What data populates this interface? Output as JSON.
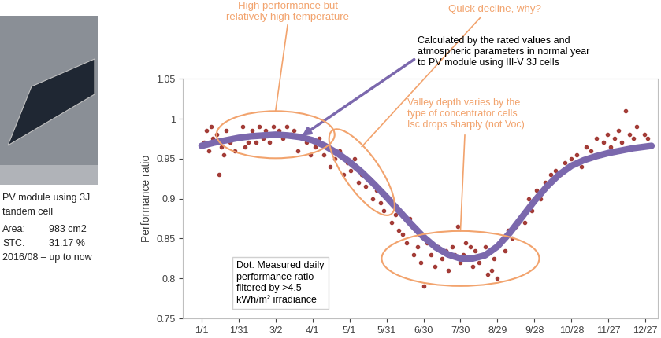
{
  "chart_data": {
    "type": "scatter",
    "y_label": "Performance ratio",
    "xlim": [
      -15,
      370
    ],
    "xticks": [
      {
        "value": 0,
        "label": "1/1"
      },
      {
        "value": 30,
        "label": "1/31"
      },
      {
        "value": 60,
        "label": "3/2"
      },
      {
        "value": 90,
        "label": "4/1"
      },
      {
        "value": 120,
        "label": "5/1"
      },
      {
        "value": 150,
        "label": "5/31"
      },
      {
        "value": 180,
        "label": "6/30"
      },
      {
        "value": 210,
        "label": "7/30"
      },
      {
        "value": 240,
        "label": "8/29"
      },
      {
        "value": 270,
        "label": "9/28"
      },
      {
        "value": 300,
        "label": "10/28"
      },
      {
        "value": 330,
        "label": "11/27"
      },
      {
        "value": 360,
        "label": "12/27"
      }
    ],
    "ylim": [
      0.75,
      1.05
    ],
    "yticks": [
      0.75,
      0.8,
      0.85,
      0.9,
      0.95,
      1,
      1.05
    ],
    "grid": false,
    "series": [
      {
        "type": "scatter",
        "color": "#a33c37",
        "marker": "o",
        "x": [
          2,
          4,
          6,
          8,
          9,
          12,
          14,
          16,
          18,
          20,
          23,
          25,
          27,
          30,
          33,
          35,
          38,
          41,
          44,
          47,
          50,
          52,
          55,
          58,
          60,
          63,
          66,
          69,
          72,
          75,
          78,
          82,
          85,
          88,
          92,
          95,
          99,
          104,
          108,
          112,
          115,
          118,
          121,
          124,
          127,
          130,
          133,
          136,
          139,
          142,
          145,
          148,
          151,
          154,
          157,
          160,
          163,
          166,
          169,
          172,
          175,
          178,
          180,
          183,
          186,
          189,
          192,
          195,
          198,
          200,
          203,
          205,
          208,
          210,
          212,
          214,
          216,
          218,
          220,
          222,
          225,
          228,
          230,
          232,
          235,
          237,
          240,
          243,
          246,
          249,
          252,
          255,
          258,
          262,
          265,
          268,
          272,
          275,
          279,
          283,
          287,
          291,
          295,
          300,
          304,
          308,
          312,
          316,
          320,
          323,
          326,
          329,
          332,
          335,
          338,
          341,
          344,
          347,
          350,
          353,
          356,
          359,
          362
        ],
        "values": [
          0.97,
          0.985,
          0.96,
          0.99,
          0.975,
          0.98,
          0.93,
          0.965,
          0.955,
          0.985,
          0.97,
          0.975,
          0.96,
          0.975,
          0.99,
          0.965,
          0.97,
          0.985,
          0.97,
          0.99,
          0.975,
          0.985,
          0.97,
          0.99,
          0.98,
          0.985,
          0.975,
          0.99,
          0.98,
          0.985,
          0.96,
          0.975,
          0.97,
          0.955,
          0.965,
          0.975,
          0.955,
          0.94,
          0.95,
          0.96,
          0.93,
          0.945,
          0.935,
          0.95,
          0.92,
          0.93,
          0.915,
          0.925,
          0.9,
          0.91,
          0.895,
          0.885,
          0.9,
          0.87,
          0.88,
          0.86,
          0.855,
          0.845,
          0.875,
          0.83,
          0.84,
          0.82,
          0.79,
          0.845,
          0.83,
          0.815,
          0.84,
          0.825,
          0.835,
          0.81,
          0.84,
          0.83,
          0.865,
          0.82,
          0.83,
          0.845,
          0.825,
          0.84,
          0.815,
          0.835,
          0.82,
          0.83,
          0.84,
          0.805,
          0.81,
          0.825,
          0.8,
          0.845,
          0.835,
          0.86,
          0.85,
          0.865,
          0.875,
          0.87,
          0.9,
          0.885,
          0.91,
          0.9,
          0.92,
          0.93,
          0.935,
          0.93,
          0.945,
          0.95,
          0.955,
          0.94,
          0.965,
          0.96,
          0.975,
          0.955,
          0.97,
          0.98,
          0.965,
          0.975,
          0.985,
          0.97,
          1.01,
          0.98,
          0.975,
          0.99,
          0.965,
          0.98,
          0.975
        ]
      },
      {
        "type": "line",
        "color": "#7b68ad",
        "line_style": "solid",
        "x": [
          0,
          10,
          20,
          30,
          40,
          50,
          60,
          70,
          80,
          90,
          100,
          110,
          120,
          130,
          140,
          150,
          160,
          170,
          180,
          190,
          200,
          210,
          220,
          230,
          240,
          250,
          260,
          270,
          280,
          290,
          300,
          310,
          320,
          330,
          340,
          350,
          360,
          365
        ],
        "values": [
          0.966,
          0.97,
          0.973,
          0.976,
          0.978,
          0.979,
          0.98,
          0.979,
          0.977,
          0.973,
          0.966,
          0.957,
          0.946,
          0.933,
          0.918,
          0.902,
          0.885,
          0.868,
          0.852,
          0.839,
          0.83,
          0.825,
          0.825,
          0.829,
          0.84,
          0.857,
          0.877,
          0.897,
          0.915,
          0.93,
          0.941,
          0.948,
          0.953,
          0.957,
          0.96,
          0.963,
          0.965,
          0.966
        ]
      }
    ],
    "annotations": {
      "high_performance": {
        "text": "High performance but\nrelatively high temperature",
        "color": "#f2a36d"
      },
      "quick_decline": {
        "text": "Quick decline, why?",
        "color": "#f2a36d"
      },
      "calculated": {
        "text": "Calculated by the rated values and\natmospheric parameters in normal year\nto PV module using III-V 3J cells",
        "color": "#000000"
      },
      "valley": {
        "text": "Valley depth varies by the\ntype of concentrator cells\nIsc drops sharply (not Voc)",
        "color": "#f2a36d"
      },
      "dot_legend": {
        "text": "Dot: Measured daily\nperformance ratio\nfiltered by >4.5\nkWh/m² irradiance",
        "color": "#000000"
      }
    }
  },
  "module_info": {
    "lines": [
      "PV module using 3J",
      "tandem cell"
    ],
    "specs": [
      [
        "Area:",
        "983 cm2"
      ],
      [
        "STC:",
        "31.17 %"
      ]
    ],
    "period": "2016/08 – up to now"
  }
}
